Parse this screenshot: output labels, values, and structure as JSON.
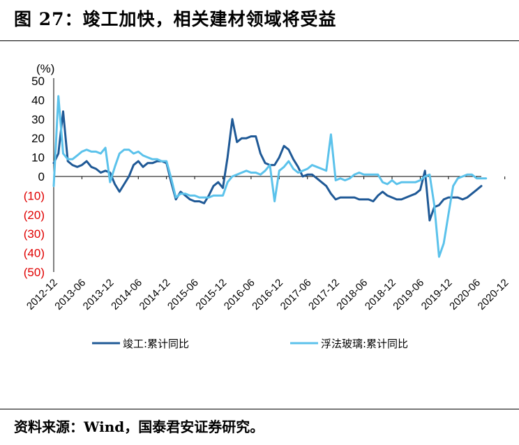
{
  "header": {
    "title": "图 27：竣工加快，相关建材领域将受益"
  },
  "footer": {
    "source": "资料来源：Wind，国泰君安证券研究。"
  },
  "colors": {
    "completion": "#1F5996",
    "glass": "#5BC2EB",
    "negative_tick": "#E00000"
  },
  "chart_data": {
    "type": "line",
    "ylabel": "(%)",
    "ylim": [
      -50,
      50
    ],
    "yticks": [
      {
        "value": 50,
        "label": "50"
      },
      {
        "value": 40,
        "label": "40"
      },
      {
        "value": 30,
        "label": "30"
      },
      {
        "value": 20,
        "label": "20"
      },
      {
        "value": 10,
        "label": "10"
      },
      {
        "value": 0,
        "label": "0"
      },
      {
        "value": -10,
        "label": "(10)"
      },
      {
        "value": -20,
        "label": "(20)"
      },
      {
        "value": -30,
        "label": "(30)"
      },
      {
        "value": -40,
        "label": "(40)"
      },
      {
        "value": -50,
        "label": "(50)"
      }
    ],
    "xticks": [
      "2012-12",
      "2013-06",
      "2013-12",
      "2014-06",
      "2014-12",
      "2015-06",
      "2015-12",
      "2016-06",
      "2016-12",
      "2017-06",
      "2017-12",
      "2018-06",
      "2018-12",
      "2019-06",
      "2019-12",
      "2020-06",
      "2020-12"
    ],
    "x_start": "2012-12",
    "x_end": "2020-12",
    "legend_position": "bottom",
    "series": [
      {
        "name": "竣工:累计同比",
        "values": [
          7,
          12,
          34,
          8,
          6,
          5,
          6,
          8,
          5,
          4,
          2,
          3,
          2,
          -4,
          -8,
          -4,
          0,
          6,
          8,
          5,
          7,
          7,
          8,
          8,
          7,
          -3,
          -12,
          -8,
          -10,
          -12,
          -13,
          -13,
          -14,
          -10,
          -5,
          -3,
          -6,
          10,
          30,
          18,
          20,
          20,
          21,
          21,
          12,
          7,
          6,
          6,
          10,
          16,
          14,
          9,
          5,
          0,
          1,
          1,
          -1,
          -3,
          -5,
          -9,
          -12,
          -11,
          -11,
          -11,
          -11,
          -12,
          -12,
          -12,
          -13,
          -10,
          -8,
          -10,
          -11,
          -12,
          -12,
          -11,
          -10,
          -9,
          -7,
          3,
          -23,
          -16,
          -15,
          -12,
          -11,
          -11,
          -11,
          -12,
          -11,
          -9,
          -7,
          -5
        ]
      },
      {
        "name": "浮法玻璃:累计同比",
        "values": [
          -5,
          42,
          12,
          9,
          9,
          11,
          13,
          14,
          13,
          13,
          12,
          15,
          -3,
          5,
          12,
          14,
          14,
          12,
          13,
          11,
          10,
          9,
          9,
          8,
          8,
          -1,
          -11,
          -9,
          -9,
          -10,
          -10,
          -11,
          -11,
          -11,
          -10,
          -10,
          -10,
          -3,
          0,
          1,
          2,
          3,
          2,
          2,
          1,
          3,
          6,
          -13,
          3,
          5,
          8,
          4,
          2,
          3,
          4,
          6,
          5,
          4,
          3,
          22,
          -2,
          -1,
          -2,
          -1,
          1,
          2,
          1,
          1,
          1,
          1,
          -3,
          -4,
          -2,
          -4,
          -3,
          -3,
          -3,
          -3,
          -2,
          0,
          1,
          -15,
          -42,
          -35,
          -20,
          -5,
          -1,
          0,
          1,
          1,
          -1,
          -1,
          -1
        ]
      }
    ]
  }
}
